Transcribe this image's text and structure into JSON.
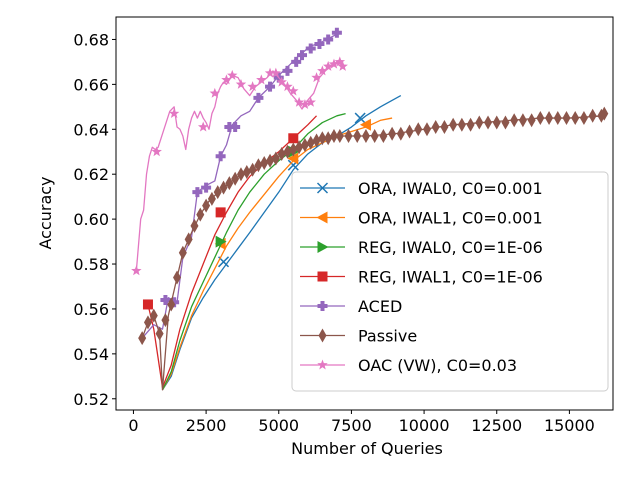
{
  "chart_data": {
    "type": "line",
    "xlabel": "Number of Queries",
    "ylabel": "Accuracy",
    "xlim": [
      -600,
      16500
    ],
    "ylim": [
      0.515,
      0.69
    ],
    "xticks": [
      0,
      2500,
      5000,
      7500,
      10000,
      12500,
      15000
    ],
    "yticks": [
      0.52,
      0.54,
      0.56,
      0.58,
      0.6,
      0.62,
      0.64,
      0.66,
      0.68
    ],
    "grid": false,
    "legend_position": "lower-right",
    "series": [
      {
        "name": "ORA, IWAL0, C0=0.001",
        "color": "#1f77b4",
        "marker": "x",
        "line_points": [
          [
            1000,
            0.524
          ],
          [
            1300,
            0.53
          ],
          [
            1600,
            0.542
          ],
          [
            2000,
            0.556
          ],
          [
            2400,
            0.565
          ],
          [
            2800,
            0.573
          ],
          [
            3200,
            0.58
          ],
          [
            3600,
            0.587
          ],
          [
            4000,
            0.594
          ],
          [
            4500,
            0.603
          ],
          [
            5000,
            0.612
          ],
          [
            5500,
            0.622
          ],
          [
            6000,
            0.629
          ],
          [
            6500,
            0.634
          ],
          [
            7000,
            0.637
          ],
          [
            7500,
            0.641
          ],
          [
            8000,
            0.646
          ],
          [
            8500,
            0.65
          ],
          [
            9200,
            0.655
          ]
        ],
        "marker_points": [
          [
            3100,
            0.581
          ],
          [
            5500,
            0.624
          ],
          [
            7800,
            0.645
          ]
        ]
      },
      {
        "name": "ORA, IWAL1, C0=0.001",
        "color": "#ff7f0e",
        "marker": "triangle-left",
        "line_points": [
          [
            1000,
            0.524
          ],
          [
            1300,
            0.531
          ],
          [
            1600,
            0.543
          ],
          [
            2000,
            0.557
          ],
          [
            2400,
            0.568
          ],
          [
            2800,
            0.578
          ],
          [
            3200,
            0.588
          ],
          [
            3600,
            0.596
          ],
          [
            4000,
            0.603
          ],
          [
            4500,
            0.611
          ],
          [
            5000,
            0.619
          ],
          [
            5500,
            0.626
          ],
          [
            6000,
            0.631
          ],
          [
            6500,
            0.634
          ],
          [
            7000,
            0.637
          ],
          [
            7500,
            0.639
          ],
          [
            8000,
            0.641
          ],
          [
            8500,
            0.644
          ],
          [
            8900,
            0.645
          ]
        ],
        "marker_points": [
          [
            3000,
            0.589
          ],
          [
            5500,
            0.627
          ],
          [
            8000,
            0.642
          ]
        ]
      },
      {
        "name": "REG, IWAL0, C0=1E-06",
        "color": "#2ca02c",
        "marker": "triangle-right",
        "line_points": [
          [
            1000,
            0.524
          ],
          [
            1300,
            0.532
          ],
          [
            1600,
            0.546
          ],
          [
            2000,
            0.561
          ],
          [
            2400,
            0.572
          ],
          [
            2800,
            0.583
          ],
          [
            3200,
            0.594
          ],
          [
            3600,
            0.604
          ],
          [
            4000,
            0.612
          ],
          [
            4500,
            0.62
          ],
          [
            5000,
            0.626
          ],
          [
            5500,
            0.631
          ],
          [
            6000,
            0.638
          ],
          [
            6500,
            0.643
          ],
          [
            7000,
            0.646
          ],
          [
            7300,
            0.647
          ]
        ],
        "marker_points": [
          [
            3000,
            0.59
          ],
          [
            5500,
            0.63
          ]
        ]
      },
      {
        "name": "REG, IWAL1, C0=1E-06",
        "color": "#d62728",
        "marker": "square",
        "line_points": [
          [
            500,
            0.562
          ],
          [
            700,
            0.551
          ],
          [
            1000,
            0.525
          ],
          [
            1300,
            0.535
          ],
          [
            1600,
            0.551
          ],
          [
            2000,
            0.567
          ],
          [
            2400,
            0.58
          ],
          [
            2800,
            0.593
          ],
          [
            3200,
            0.603
          ],
          [
            3600,
            0.612
          ],
          [
            4000,
            0.619
          ],
          [
            4500,
            0.625
          ],
          [
            5000,
            0.63
          ],
          [
            5500,
            0.636
          ],
          [
            6000,
            0.642
          ],
          [
            6300,
            0.646
          ]
        ],
        "marker_points": [
          [
            500,
            0.562
          ],
          [
            3000,
            0.603
          ],
          [
            5500,
            0.636
          ]
        ]
      },
      {
        "name": "ACED",
        "color": "#9467bd",
        "marker": "plus",
        "line_points": [
          [
            300,
            0.547
          ],
          [
            700,
            0.553
          ],
          [
            1000,
            0.551
          ],
          [
            1200,
            0.565
          ],
          [
            1500,
            0.563
          ],
          [
            1700,
            0.583
          ],
          [
            2000,
            0.592
          ],
          [
            2200,
            0.612
          ],
          [
            2500,
            0.615
          ],
          [
            2800,
            0.617
          ],
          [
            3000,
            0.628
          ],
          [
            3200,
            0.633
          ],
          [
            3400,
            0.642
          ],
          [
            3700,
            0.646
          ],
          [
            4000,
            0.648
          ],
          [
            4300,
            0.654
          ],
          [
            4700,
            0.659
          ],
          [
            5000,
            0.664
          ],
          [
            5400,
            0.669
          ],
          [
            5700,
            0.673
          ],
          [
            6100,
            0.677
          ],
          [
            6500,
            0.679
          ],
          [
            6800,
            0.681
          ],
          [
            7100,
            0.683
          ]
        ],
        "marker_points": [
          [
            1100,
            0.564
          ],
          [
            1400,
            0.563
          ],
          [
            2200,
            0.612
          ],
          [
            2500,
            0.614
          ],
          [
            3000,
            0.628
          ],
          [
            3300,
            0.641
          ],
          [
            3500,
            0.641
          ],
          [
            4300,
            0.654
          ],
          [
            4700,
            0.659
          ],
          [
            5000,
            0.663
          ],
          [
            5300,
            0.666
          ],
          [
            5600,
            0.67
          ],
          [
            5800,
            0.673
          ],
          [
            6100,
            0.676
          ],
          [
            6400,
            0.678
          ],
          [
            6700,
            0.68
          ],
          [
            7000,
            0.683
          ]
        ]
      },
      {
        "name": "Passive",
        "color": "#8c564b",
        "marker": "diamond",
        "line_points": [
          [
            300,
            0.547
          ],
          [
            500,
            0.554
          ],
          [
            700,
            0.557
          ],
          [
            900,
            0.549
          ],
          [
            1000,
            0.524
          ],
          [
            1200,
            0.557
          ],
          [
            1500,
            0.574
          ],
          [
            1700,
            0.585
          ],
          [
            2000,
            0.594
          ],
          [
            2300,
            0.602
          ],
          [
            2600,
            0.608
          ],
          [
            3000,
            0.613
          ],
          [
            3500,
            0.618
          ],
          [
            4000,
            0.622
          ],
          [
            4500,
            0.625
          ],
          [
            5000,
            0.628
          ],
          [
            5500,
            0.631
          ],
          [
            6000,
            0.634
          ],
          [
            6500,
            0.636
          ],
          [
            7000,
            0.637
          ],
          [
            8000,
            0.637
          ],
          [
            9000,
            0.638
          ],
          [
            10000,
            0.64
          ],
          [
            11000,
            0.642
          ],
          [
            12000,
            0.643
          ],
          [
            13000,
            0.644
          ],
          [
            14000,
            0.645
          ],
          [
            15000,
            0.645
          ],
          [
            16200,
            0.646
          ]
        ],
        "marker_points": [
          [
            300,
            0.547
          ],
          [
            500,
            0.554
          ],
          [
            700,
            0.557
          ],
          [
            900,
            0.549
          ],
          [
            1100,
            0.555
          ],
          [
            1300,
            0.562
          ],
          [
            1500,
            0.574
          ],
          [
            1700,
            0.585
          ],
          [
            1900,
            0.591
          ],
          [
            2100,
            0.597
          ],
          [
            2300,
            0.602
          ],
          [
            2500,
            0.606
          ],
          [
            2700,
            0.609
          ],
          [
            2900,
            0.612
          ],
          [
            3100,
            0.614
          ],
          [
            3300,
            0.616
          ],
          [
            3500,
            0.618
          ],
          [
            3700,
            0.62
          ],
          [
            3900,
            0.621
          ],
          [
            4100,
            0.622
          ],
          [
            4300,
            0.624
          ],
          [
            4500,
            0.625
          ],
          [
            4700,
            0.626
          ],
          [
            4900,
            0.627
          ],
          [
            5100,
            0.629
          ],
          [
            5300,
            0.63
          ],
          [
            5500,
            0.631
          ],
          [
            5700,
            0.632
          ],
          [
            5900,
            0.633
          ],
          [
            6100,
            0.634
          ],
          [
            6300,
            0.635
          ],
          [
            6500,
            0.636
          ],
          [
            6700,
            0.636
          ],
          [
            6900,
            0.637
          ],
          [
            7100,
            0.637
          ],
          [
            7400,
            0.637
          ],
          [
            7700,
            0.637
          ],
          [
            8000,
            0.637
          ],
          [
            8300,
            0.637
          ],
          [
            8600,
            0.637
          ],
          [
            8900,
            0.638
          ],
          [
            9200,
            0.638
          ],
          [
            9500,
            0.639
          ],
          [
            9800,
            0.64
          ],
          [
            10100,
            0.64
          ],
          [
            10400,
            0.641
          ],
          [
            10700,
            0.641
          ],
          [
            11000,
            0.642
          ],
          [
            11300,
            0.642
          ],
          [
            11600,
            0.642
          ],
          [
            11900,
            0.643
          ],
          [
            12200,
            0.643
          ],
          [
            12500,
            0.643
          ],
          [
            12800,
            0.643
          ],
          [
            13100,
            0.644
          ],
          [
            13400,
            0.644
          ],
          [
            13700,
            0.644
          ],
          [
            14000,
            0.645
          ],
          [
            14300,
            0.645
          ],
          [
            14600,
            0.645
          ],
          [
            14900,
            0.645
          ],
          [
            15200,
            0.645
          ],
          [
            15500,
            0.645
          ],
          [
            15800,
            0.646
          ],
          [
            16100,
            0.646
          ],
          [
            16200,
            0.647
          ]
        ]
      },
      {
        "name": "OAC (VW), C0=0.03",
        "color": "#e377c2",
        "marker": "star",
        "line_points": [
          [
            100,
            0.577
          ],
          [
            250,
            0.6
          ],
          [
            350,
            0.604
          ],
          [
            450,
            0.62
          ],
          [
            550,
            0.628
          ],
          [
            650,
            0.632
          ],
          [
            750,
            0.631
          ],
          [
            850,
            0.632
          ],
          [
            950,
            0.636
          ],
          [
            1100,
            0.642
          ],
          [
            1250,
            0.648
          ],
          [
            1400,
            0.65
          ],
          [
            1500,
            0.641
          ],
          [
            1600,
            0.64
          ],
          [
            1700,
            0.637
          ],
          [
            1800,
            0.631
          ],
          [
            1900,
            0.64
          ],
          [
            2000,
            0.645
          ],
          [
            2100,
            0.648
          ],
          [
            2200,
            0.645
          ],
          [
            2300,
            0.648
          ],
          [
            2400,
            0.645
          ],
          [
            2500,
            0.643
          ],
          [
            2600,
            0.64
          ],
          [
            2700,
            0.647
          ],
          [
            2800,
            0.65
          ],
          [
            2900,
            0.656
          ],
          [
            3000,
            0.659
          ],
          [
            3100,
            0.661
          ],
          [
            3200,
            0.66
          ],
          [
            3400,
            0.664
          ],
          [
            3600,
            0.663
          ],
          [
            3800,
            0.658
          ],
          [
            4000,
            0.655
          ],
          [
            4200,
            0.659
          ],
          [
            4400,
            0.661
          ],
          [
            4600,
            0.663
          ],
          [
            4800,
            0.666
          ],
          [
            5000,
            0.663
          ],
          [
            5200,
            0.66
          ],
          [
            5400,
            0.656
          ],
          [
            5600,
            0.653
          ],
          [
            5800,
            0.649
          ],
          [
            6000,
            0.653
          ],
          [
            6200,
            0.656
          ],
          [
            6400,
            0.663
          ],
          [
            6600,
            0.666
          ],
          [
            6800,
            0.668
          ],
          [
            7000,
            0.67
          ],
          [
            7200,
            0.669
          ]
        ],
        "marker_points": [
          [
            100,
            0.577
          ],
          [
            800,
            0.63
          ],
          [
            1400,
            0.647
          ],
          [
            2400,
            0.641
          ],
          [
            2800,
            0.656
          ],
          [
            3200,
            0.662
          ],
          [
            3400,
            0.664
          ],
          [
            3700,
            0.66
          ],
          [
            4100,
            0.659
          ],
          [
            4400,
            0.662
          ],
          [
            4700,
            0.665
          ],
          [
            4900,
            0.665
          ],
          [
            5100,
            0.661
          ],
          [
            5300,
            0.659
          ],
          [
            5500,
            0.657
          ],
          [
            5700,
            0.652
          ],
          [
            5900,
            0.651
          ],
          [
            6100,
            0.652
          ],
          [
            6300,
            0.663
          ],
          [
            6500,
            0.666
          ],
          [
            6700,
            0.668
          ],
          [
            6900,
            0.669
          ],
          [
            7100,
            0.67
          ],
          [
            7200,
            0.668
          ]
        ]
      }
    ]
  }
}
